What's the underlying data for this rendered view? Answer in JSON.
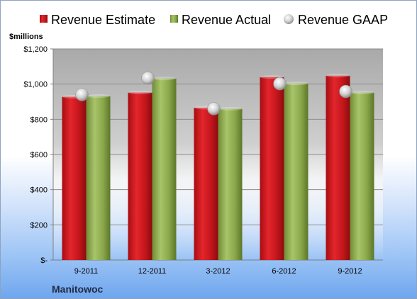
{
  "chart_data": {
    "type": "bar",
    "categories": [
      "9-2011",
      "12-2011",
      "3-2012",
      "6-2012",
      "9-2012"
    ],
    "series": [
      {
        "name": "Revenue Estimate",
        "kind": "bar",
        "color": "#c4161c",
        "values": [
          928,
          952,
          866,
          1040,
          1048
        ]
      },
      {
        "name": "Revenue Actual",
        "kind": "bar",
        "color": "#8aa84a",
        "values": [
          932,
          1032,
          860,
          1004,
          952
        ]
      },
      {
        "name": "Revenue GAAP",
        "kind": "marker",
        "color": "#c8c8c8",
        "values": [
          940,
          1034,
          860,
          1002,
          958
        ]
      }
    ],
    "y_unit_label": "$millions",
    "ylim": [
      0,
      1200
    ],
    "yticks": [
      0,
      200,
      400,
      600,
      800,
      1000,
      1200
    ],
    "ytick_labels": [
      "$-",
      "$200",
      "$400",
      "$600",
      "$800",
      "$1,000",
      "$1,200"
    ],
    "grid": true,
    "legend_position": "top",
    "company": "Manitowoc"
  }
}
